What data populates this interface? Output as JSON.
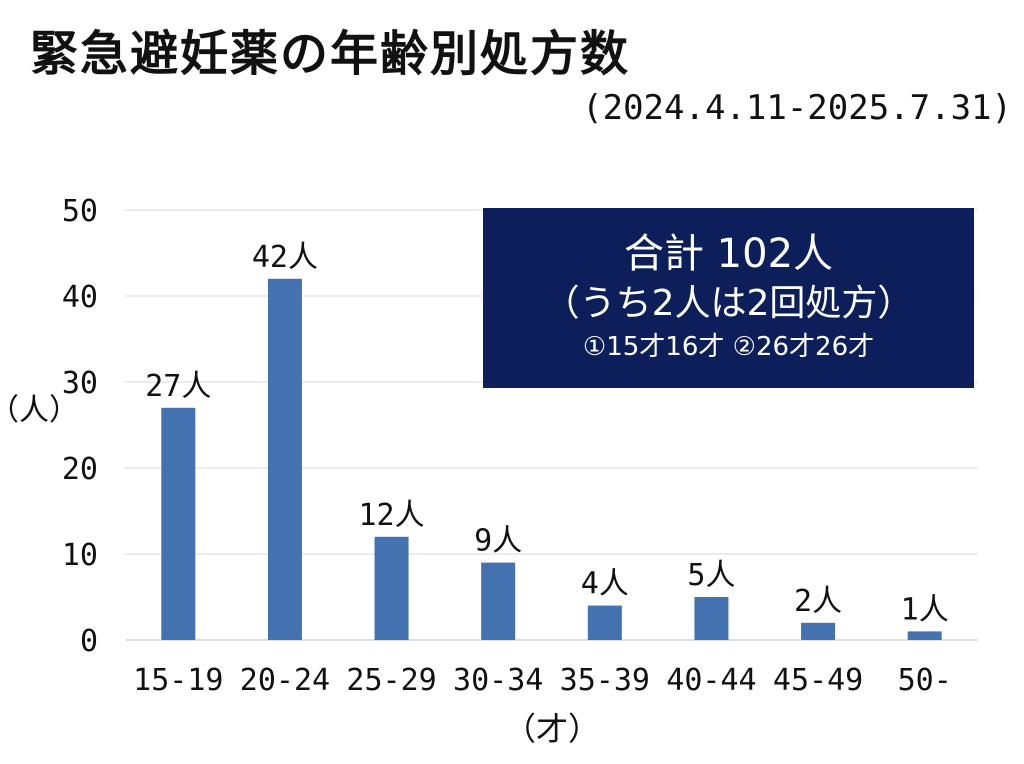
{
  "header": {
    "title": "緊急避妊薬の年齢別処方数",
    "period": "(2024.4.11-2025.7.31)"
  },
  "summary_box": {
    "line1": "合計 102人",
    "line2": "（うち2人は2回処方）",
    "line3": "①15才16才 ②26才26才",
    "background": "#0c1f5a"
  },
  "colors": {
    "bar": "#4472b0",
    "grid": "#d9d9d9"
  },
  "chart_data": {
    "type": "bar",
    "title": "緊急避妊薬の年齢別処方数",
    "categories": [
      "15-19",
      "20-24",
      "25-29",
      "30-34",
      "35-39",
      "40-44",
      "45-49",
      "50-"
    ],
    "values": [
      27,
      42,
      12,
      9,
      4,
      5,
      2,
      1
    ],
    "data_labels": [
      "27人",
      "42人",
      "12人",
      "9人",
      "4人",
      "5人",
      "2人",
      "1人"
    ],
    "y_ticks": [
      0,
      10,
      20,
      30,
      40,
      50
    ],
    "ylim": [
      0,
      50
    ],
    "xlabel": "（才）",
    "ylabel": "（人）",
    "grid": true,
    "legend": "none"
  }
}
